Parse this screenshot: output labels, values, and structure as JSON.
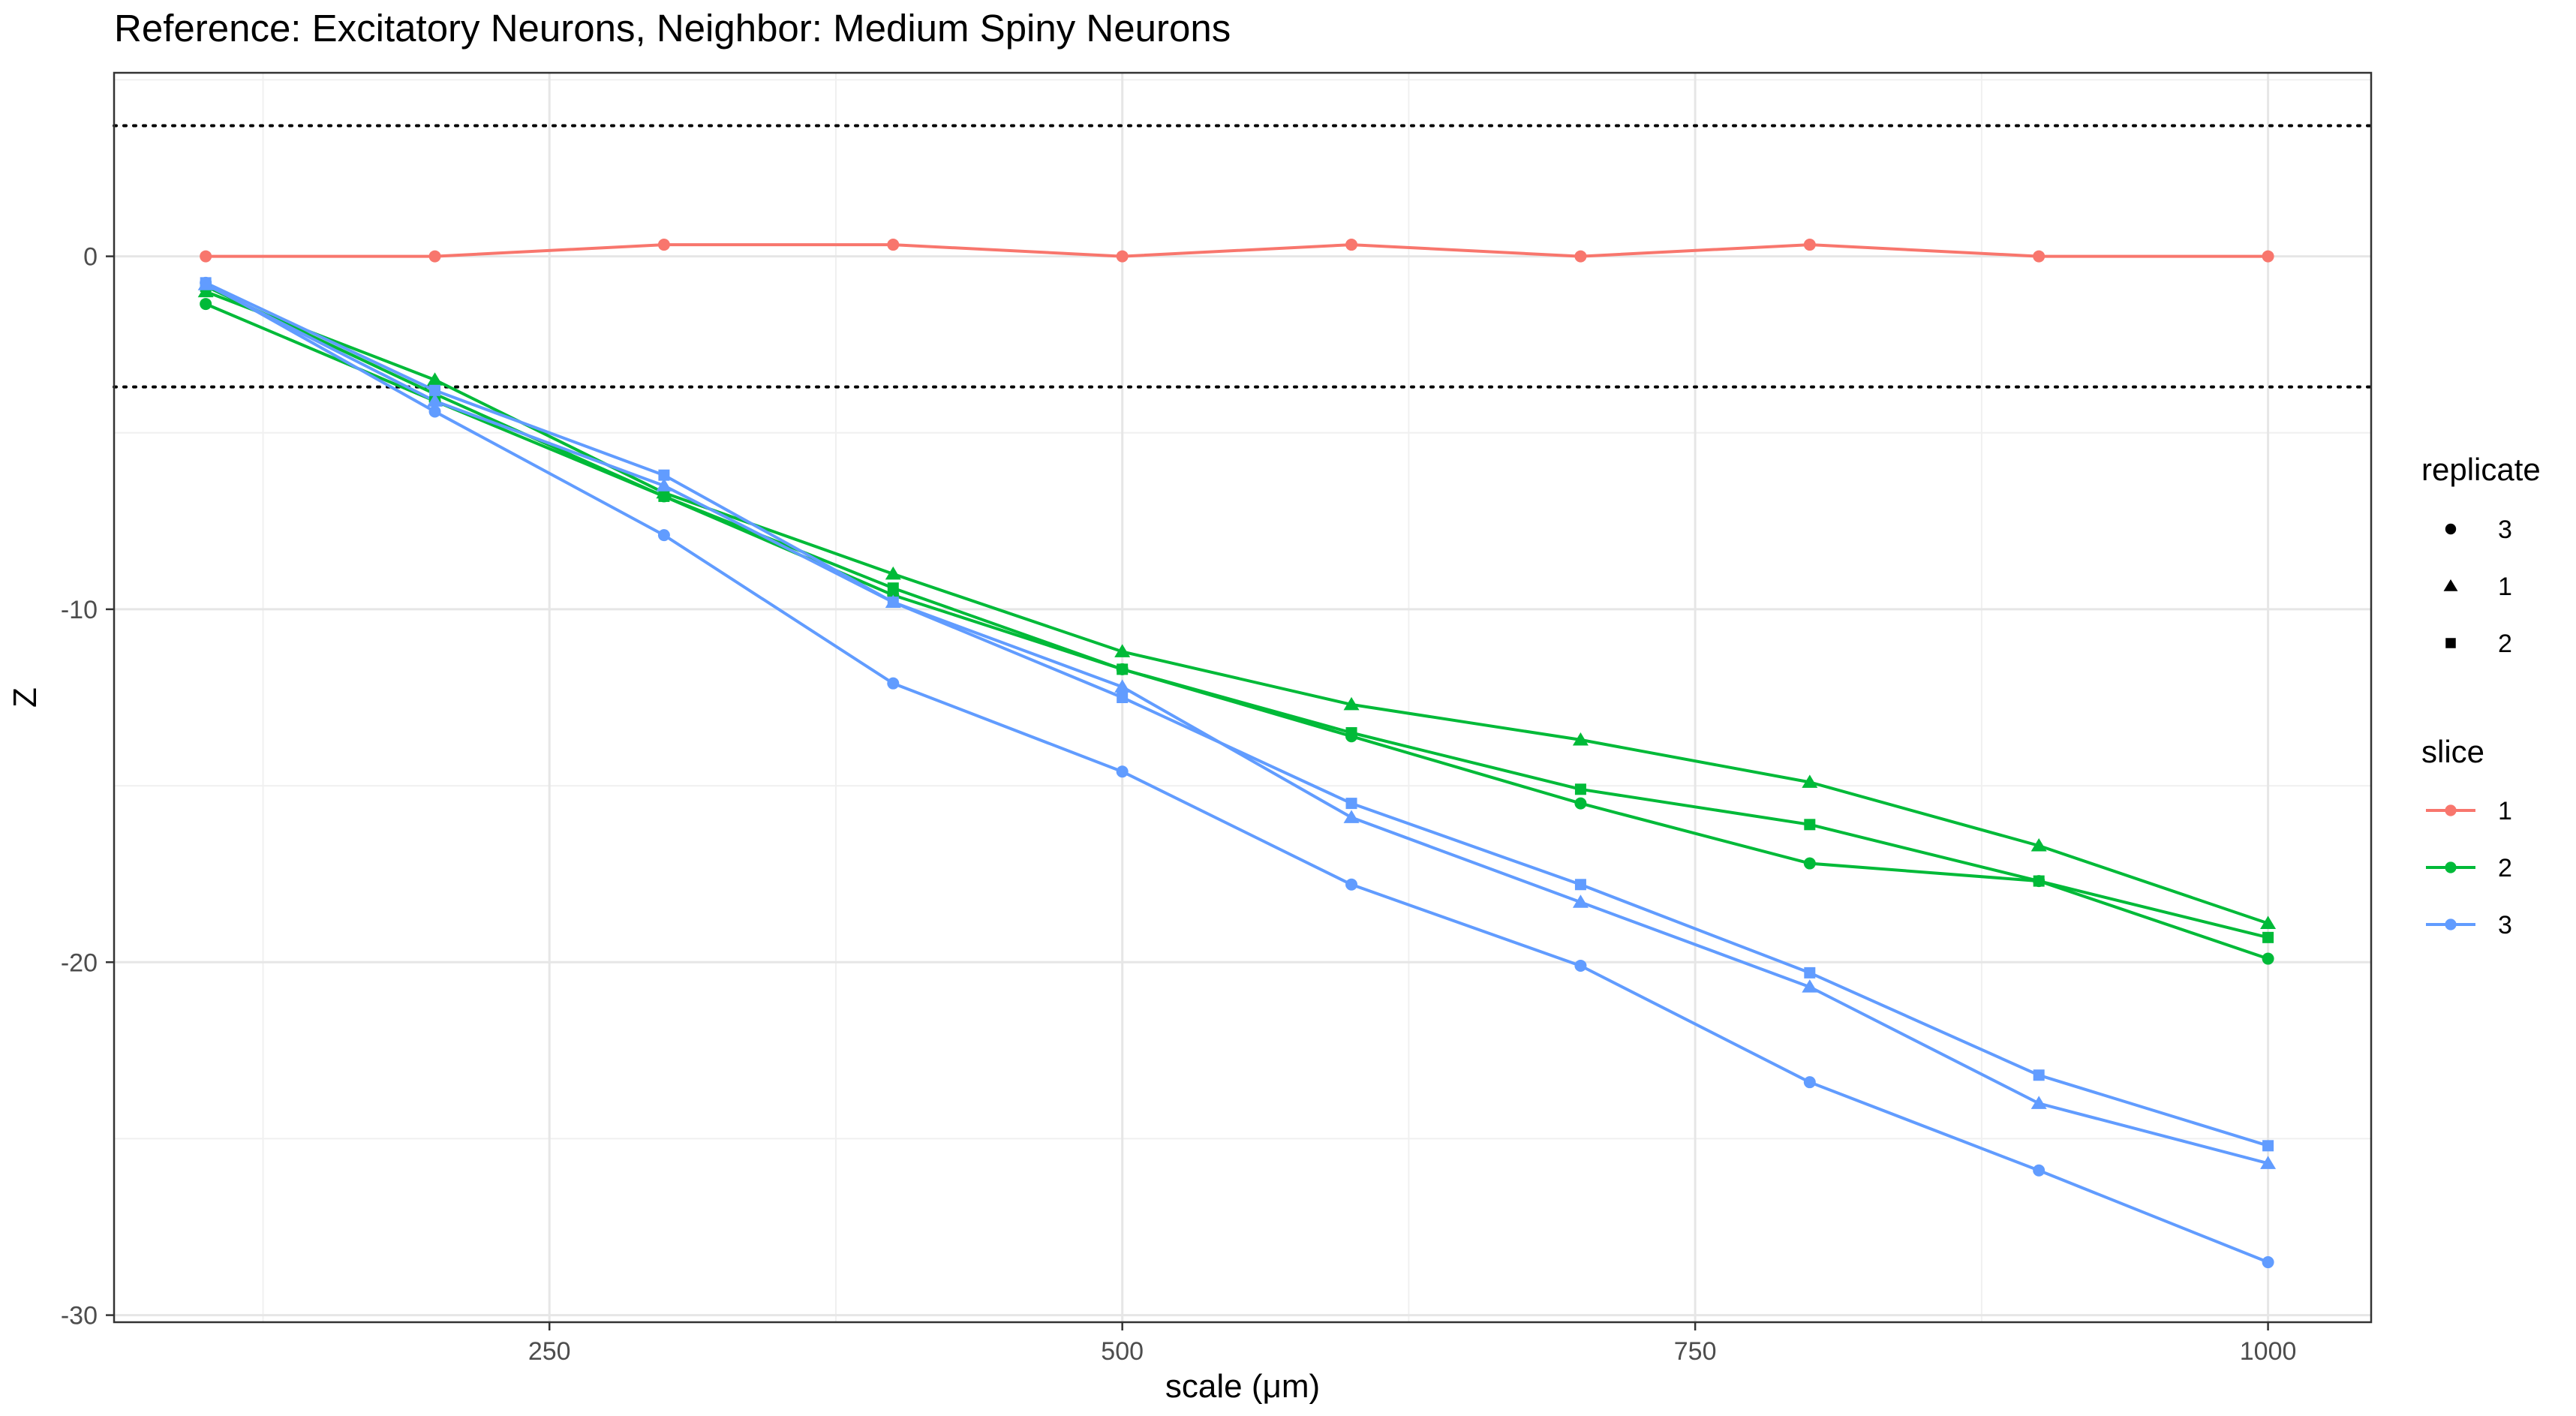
{
  "chart_data": {
    "type": "line",
    "title": "Reference: Excitatory Neurons, Neighbor: Medium Spiny Neurons",
    "xlabel": "scale (μm)",
    "ylabel": "Z",
    "xlim": [
      60,
      1045
    ],
    "ylim": [
      -30.2,
      5.2
    ],
    "x_ticks": [
      250,
      500,
      750,
      1000
    ],
    "x_tick_labels": [
      "250",
      "500",
      "750",
      "1000"
    ],
    "y_ticks": [
      0,
      -10,
      -20,
      -30
    ],
    "y_tick_labels": [
      "0",
      "-10",
      "-20",
      "-30"
    ],
    "x_minor": [
      125,
      375,
      625,
      875
    ],
    "y_minor": [
      5,
      -5,
      -15,
      -25
    ],
    "hlines": [
      3.7,
      -3.7
    ],
    "grid": true,
    "legend_position": "right",
    "x": [
      100,
      200,
      300,
      400,
      500,
      600,
      700,
      800,
      900,
      1000
    ],
    "series": [
      {
        "slice": "1",
        "replicate": "3",
        "color": "#F8766D",
        "shape": "circle",
        "values": [
          0,
          0,
          0.33,
          0.33,
          0,
          0.33,
          0,
          0.33,
          0,
          0
        ]
      },
      {
        "slice": "2",
        "replicate": "3",
        "color": "#00BA38",
        "shape": "circle",
        "values": [
          -1.35,
          -4.1,
          -6.8,
          -9.6,
          -11.7,
          -13.6,
          -15.5,
          -17.2,
          -17.7,
          -19.9
        ]
      },
      {
        "slice": "2",
        "replicate": "1",
        "color": "#00BA38",
        "shape": "triangle",
        "values": [
          -1.0,
          -3.5,
          -6.7,
          -9.0,
          -11.2,
          -12.7,
          -13.7,
          -14.9,
          -16.7,
          -18.9
        ]
      },
      {
        "slice": "2",
        "replicate": "2",
        "color": "#00BA38",
        "shape": "square",
        "values": [
          -0.85,
          -3.9,
          -6.8,
          -9.4,
          -11.7,
          -13.5,
          -15.1,
          -16.1,
          -17.7,
          -19.3
        ]
      },
      {
        "slice": "3",
        "replicate": "3",
        "color": "#619CFF",
        "shape": "circle",
        "values": [
          -0.75,
          -4.4,
          -7.9,
          -12.1,
          -14.6,
          -17.8,
          -20.1,
          -23.4,
          -25.9,
          -28.5
        ]
      },
      {
        "slice": "3",
        "replicate": "1",
        "color": "#619CFF",
        "shape": "triangle",
        "values": [
          -0.8,
          -4.1,
          -6.5,
          -9.8,
          -12.2,
          -15.9,
          -18.3,
          -20.7,
          -24.0,
          -25.7
        ]
      },
      {
        "slice": "3",
        "replicate": "2",
        "color": "#619CFF",
        "shape": "square",
        "values": [
          -0.75,
          -3.8,
          -6.2,
          -9.8,
          -12.5,
          -15.5,
          -17.8,
          -20.3,
          -23.2,
          -25.2
        ]
      }
    ],
    "legends": [
      {
        "title": "replicate",
        "items": [
          {
            "label": "3",
            "shape": "circle"
          },
          {
            "label": "1",
            "shape": "triangle"
          },
          {
            "label": "2",
            "shape": "square"
          }
        ]
      },
      {
        "title": "slice",
        "items": [
          {
            "label": "1",
            "color": "#F8766D"
          },
          {
            "label": "2",
            "color": "#00BA38"
          },
          {
            "label": "3",
            "color": "#619CFF"
          }
        ]
      }
    ]
  }
}
